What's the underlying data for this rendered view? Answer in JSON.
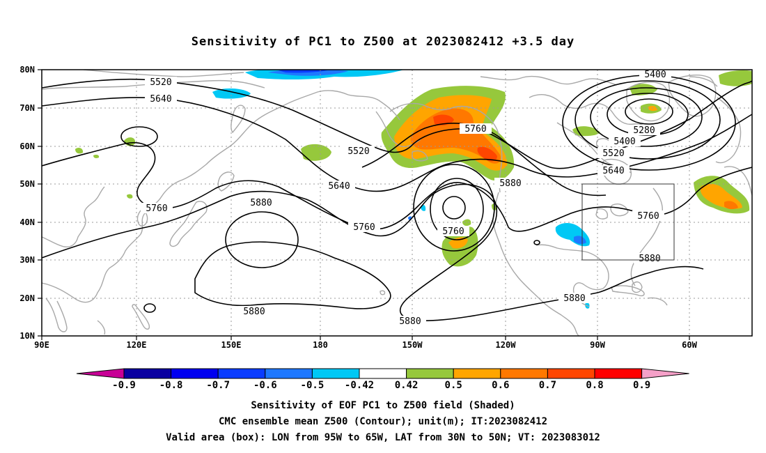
{
  "title": "Sensitivity of PC1 to Z500 at 2023082412 +3.5 day",
  "map": {
    "lat_ticks": [
      "80N",
      "70N",
      "60N",
      "50N",
      "40N",
      "30N",
      "20N",
      "10N"
    ],
    "lon_ticks": [
      "90E",
      "120E",
      "150E",
      "180",
      "150W",
      "120W",
      "90W",
      "60W"
    ],
    "contour_labels": [
      "5520",
      "5640",
      "5400",
      "5760",
      "5280",
      "5400",
      "5520",
      "5640",
      "5520",
      "5640",
      "5760",
      "5880",
      "5880",
      "5760",
      "5760",
      "5760",
      "5880",
      "5880",
      "5880",
      "5880"
    ],
    "valid_box": {
      "lon_min": -95,
      "lon_max": -65,
      "lat_min": 30,
      "lat_max": 50
    }
  },
  "colorbar": {
    "labels": [
      "-0.9",
      "-0.8",
      "-0.7",
      "-0.6",
      "-0.5",
      "-0.42",
      "0.42",
      "0.5",
      "0.6",
      "0.7",
      "0.8",
      "0.9"
    ],
    "colors": [
      "#0a00a0",
      "#0000f0",
      "#0a3cff",
      "#1e78ff",
      "#00c8f5",
      "#ffffff",
      "#96c83c",
      "#ffa500",
      "#ff7800",
      "#ff4600",
      "#ff0000"
    ],
    "left_tip": "#c80096",
    "right_tip": "#f5a0c8",
    "neg_colors": {
      "n1": "#00c8f5",
      "n2": "#1e78ff",
      "n3": "#0a3cff"
    },
    "pos_colors": {
      "p1": "#96c83c",
      "p2": "#ffa500",
      "p3": "#ff7800",
      "p4": "#ff4600"
    }
  },
  "footer": {
    "line1": "Sensitivity of EOF PC1 to Z500 field (Shaded)",
    "line2": "CMC ensemble mean Z500 (Contour); unit(m); IT:2023082412",
    "line3": "Valid area (box): LON from 95W to 65W, LAT from 30N to 50N; VT: 2023083012"
  }
}
